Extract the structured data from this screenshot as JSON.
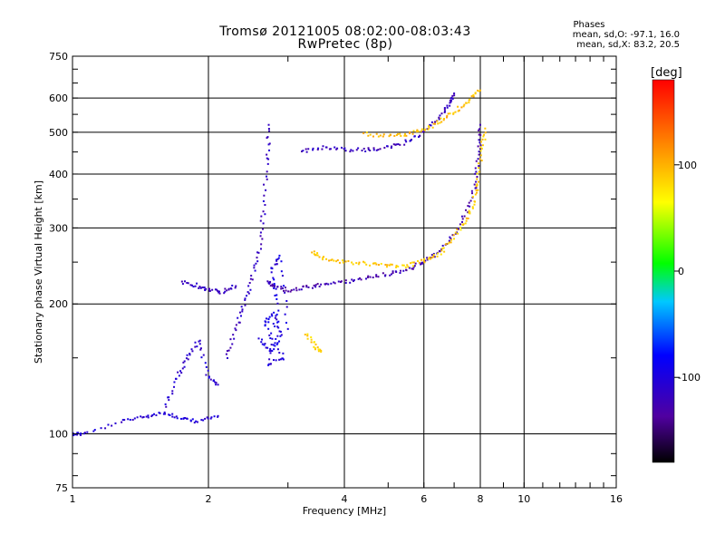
{
  "header": {
    "title_line1": "Tromsø 20121005 08:02:00-08:03:43",
    "title_line2": "RwPretec (8p)",
    "phases_title": "Phases",
    "phases_o": "mean, sd,O: -97.1, 16.0",
    "phases_x": "mean, sd,X:  83.2, 20.5"
  },
  "colorbar": {
    "label": "[deg]",
    "ticks": [
      {
        "label": "100",
        "value": 100
      },
      {
        "label": "0",
        "value": 0
      },
      {
        "label": "-100",
        "value": -100
      }
    ],
    "range": [
      -180,
      180
    ]
  },
  "chart_data": {
    "type": "scatter",
    "xlabel": "Frequency [MHz]",
    "ylabel": "Stationary phase Virtual Height [km]",
    "x_scale": "log",
    "y_scale": "log",
    "xlim": [
      1,
      16
    ],
    "ylim": [
      75,
      750
    ],
    "x_ticks": [
      {
        "label": "1",
        "value": 1
      },
      {
        "label": "2",
        "value": 2
      },
      {
        "label": "4",
        "value": 4
      },
      {
        "label": "6",
        "value": 6
      },
      {
        "label": "8",
        "value": 8
      },
      {
        "label": "10",
        "value": 10
      },
      {
        "label": "16",
        "value": 16
      }
    ],
    "y_ticks": [
      {
        "label": "75",
        "value": 75
      },
      {
        "label": "100",
        "value": 100
      },
      {
        "label": "200",
        "value": 200
      },
      {
        "label": "300",
        "value": 300
      },
      {
        "label": "400",
        "value": 400
      },
      {
        "label": "500",
        "value": 500
      },
      {
        "label": "600",
        "value": 600
      },
      {
        "label": "750",
        "value": 750
      }
    ],
    "grid_x": [
      2,
      4,
      6,
      8,
      10
    ],
    "grid_y": [
      100,
      200,
      300,
      400,
      500,
      600
    ],
    "traces": [
      {
        "points": [
          [
            1.0,
            100
          ],
          [
            1.06,
            100
          ],
          [
            1.3,
            107
          ],
          [
            1.45,
            110
          ],
          [
            1.6,
            112
          ],
          [
            1.75,
            108
          ],
          [
            1.9,
            107
          ],
          [
            2.1,
            110
          ]
        ],
        "phase": -105
      },
      {
        "points": [
          [
            1.6,
            115
          ],
          [
            1.7,
            135
          ],
          [
            1.8,
            150
          ],
          [
            1.9,
            165
          ],
          [
            2.0,
            135
          ],
          [
            2.1,
            130
          ]
        ],
        "phase": -110
      },
      {
        "points": [
          [
            2.2,
            150
          ],
          [
            2.3,
            175
          ],
          [
            2.4,
            200
          ],
          [
            2.5,
            230
          ],
          [
            2.6,
            270
          ],
          [
            2.65,
            330
          ],
          [
            2.7,
            430
          ],
          [
            2.72,
            520
          ]
        ],
        "phase": -115
      },
      {
        "points": [
          [
            1.75,
            225
          ],
          [
            1.9,
            220
          ],
          [
            2.0,
            215
          ],
          [
            2.15,
            213
          ],
          [
            2.3,
            220
          ]
        ],
        "phase": -120
      },
      {
        "points": [
          [
            2.7,
            225
          ],
          [
            2.8,
            220
          ],
          [
            3.0,
            215
          ],
          [
            3.3,
            218
          ],
          [
            3.6,
            222
          ],
          [
            4.0,
            225
          ],
          [
            4.5,
            230
          ],
          [
            5.0,
            235
          ],
          [
            5.5,
            240
          ],
          [
            6.0,
            250
          ],
          [
            6.5,
            265
          ],
          [
            7.0,
            290
          ],
          [
            7.5,
            330
          ],
          [
            7.8,
            380
          ],
          [
            7.95,
            450
          ],
          [
            8.0,
            520
          ]
        ],
        "phase": -125
      },
      {
        "points": [
          [
            3.2,
            450
          ],
          [
            3.6,
            460
          ],
          [
            4.0,
            455
          ],
          [
            4.5,
            455
          ],
          [
            5.0,
            460
          ],
          [
            5.5,
            475
          ],
          [
            6.0,
            500
          ],
          [
            6.5,
            540
          ],
          [
            6.8,
            580
          ],
          [
            7.0,
            615
          ]
        ],
        "phase": -118
      },
      {
        "points": [
          [
            3.4,
            265
          ],
          [
            3.6,
            255
          ],
          [
            4.0,
            250
          ],
          [
            4.5,
            248
          ],
          [
            5.0,
            245
          ],
          [
            5.5,
            245
          ],
          [
            6.0,
            252
          ],
          [
            6.5,
            262
          ],
          [
            7.0,
            285
          ],
          [
            7.4,
            310
          ],
          [
            7.7,
            340
          ],
          [
            7.9,
            380
          ],
          [
            8.05,
            450
          ],
          [
            8.2,
            510
          ]
        ],
        "phase": 90
      },
      {
        "points": [
          [
            4.4,
            495
          ],
          [
            5.0,
            490
          ],
          [
            5.5,
            495
          ],
          [
            6.0,
            505
          ],
          [
            6.5,
            530
          ],
          [
            7.0,
            555
          ],
          [
            7.5,
            590
          ],
          [
            8.0,
            625
          ]
        ],
        "phase": 95
      },
      {
        "points": [
          [
            3.3,
            170
          ],
          [
            3.45,
            160
          ],
          [
            3.55,
            155
          ]
        ],
        "phase": 85
      },
      {
        "points": [
          [
            2.6,
            165
          ],
          [
            2.75,
            155
          ],
          [
            2.9,
            170
          ],
          [
            2.8,
            190
          ],
          [
            2.65,
            180
          ],
          [
            2.95,
            150
          ],
          [
            2.7,
            145
          ],
          [
            2.85,
            200
          ],
          [
            2.75,
            240
          ],
          [
            2.9,
            260
          ],
          [
            3.0,
            175
          ]
        ],
        "phase": -100
      }
    ]
  }
}
